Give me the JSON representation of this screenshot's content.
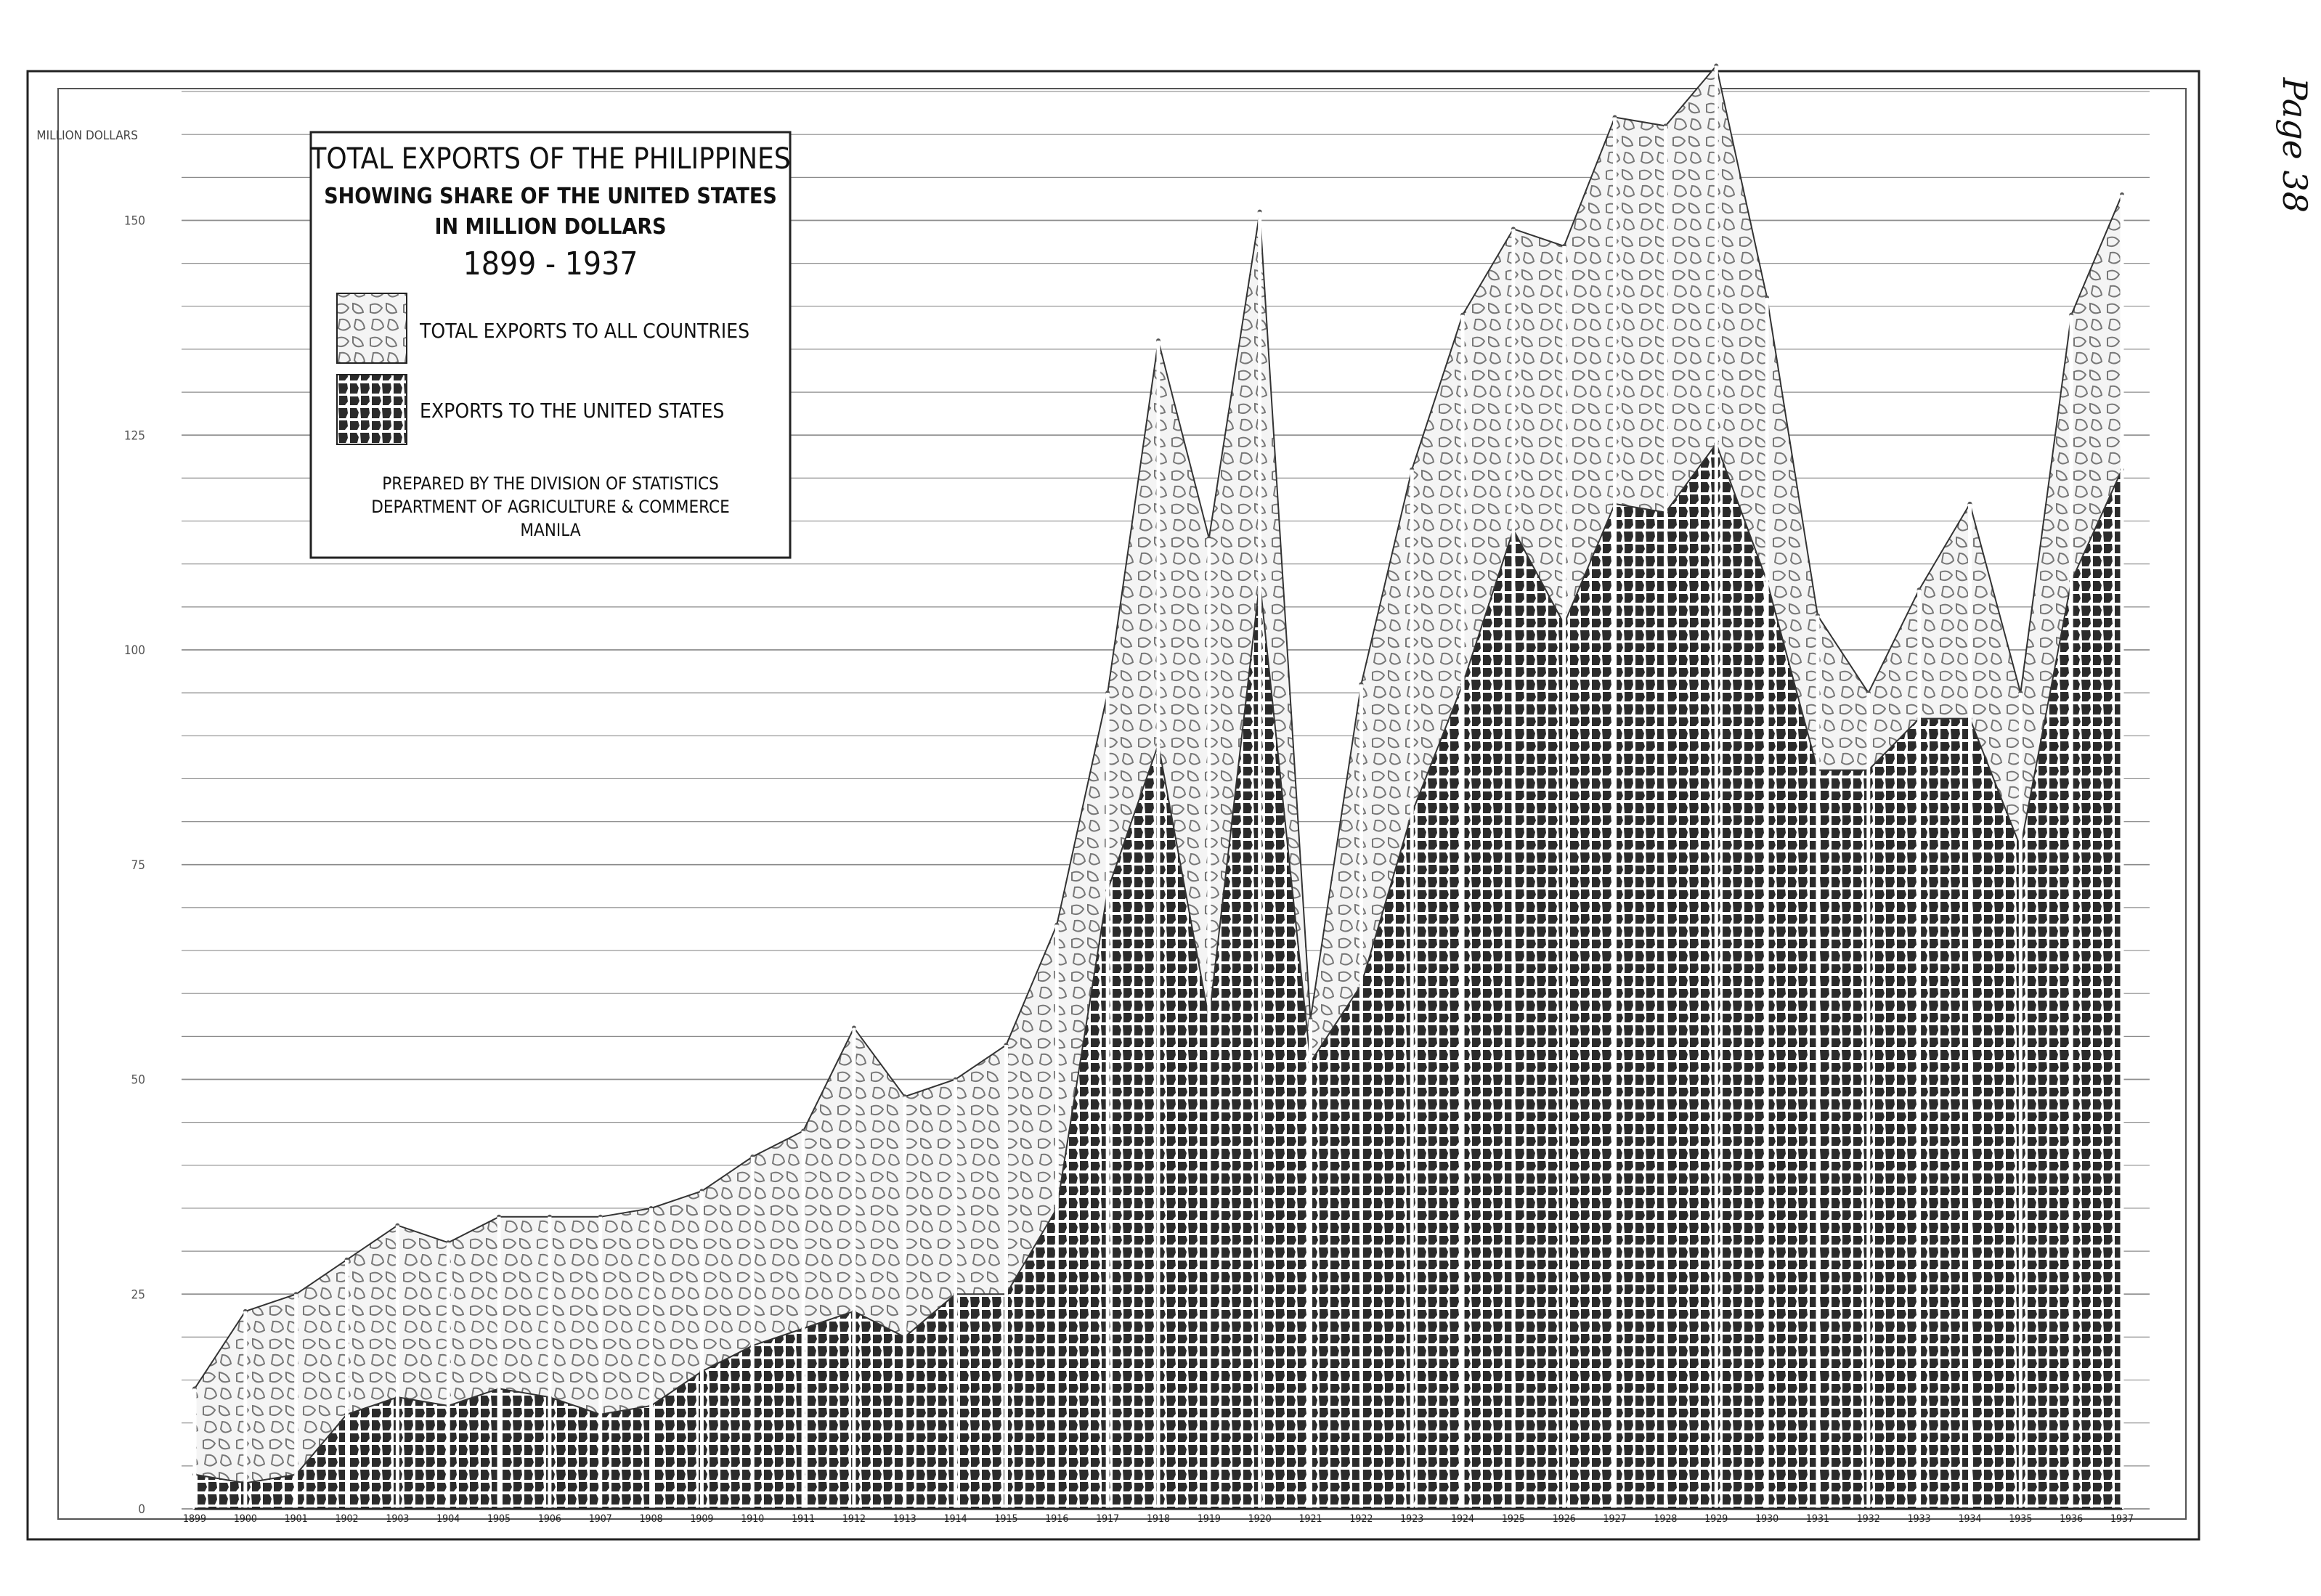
{
  "page_label": "Page 38",
  "chart_data": {
    "type": "area",
    "title": "TOTAL EXPORTS OF THE PHILIPPINES",
    "subtitle": "SHOWING SHARE OF THE UNITED STATES IN MILLION DOLLARS",
    "years_label": "1899 - 1937",
    "ylabel": "MILLION DOLLARS",
    "xlabel": "",
    "ylim": [
      0,
      165
    ],
    "y_ticks": [
      "0",
      "25",
      "50",
      "75",
      "100",
      "125",
      "150"
    ],
    "y_tick_values": [
      0,
      25,
      50,
      75,
      100,
      125,
      150
    ],
    "grid": true,
    "legend_position": "top-left",
    "credit": [
      "PREPARED BY THE DIVISION OF STATISTICS",
      "DEPARTMENT OF AGRICULTURE & COMMERCE",
      "MANILA"
    ],
    "categories": [
      "1899",
      "1900",
      "1901",
      "1902",
      "1903",
      "1904",
      "1905",
      "1906",
      "1907",
      "1908",
      "1909",
      "1910",
      "1911",
      "1912",
      "1913",
      "1914",
      "1915",
      "1916",
      "1917",
      "1918",
      "1919",
      "1920",
      "1921",
      "1922",
      "1923",
      "1924",
      "1925",
      "1926",
      "1927",
      "1928",
      "1929",
      "1930",
      "1931",
      "1932",
      "1933",
      "1934",
      "1935",
      "1936",
      "1937"
    ],
    "series": [
      {
        "name": "TOTAL EXPORTS TO ALL COUNTRIES",
        "color": "#f2f2f2",
        "values": [
          14,
          23,
          25,
          29,
          33,
          31,
          34,
          34,
          34,
          35,
          37,
          41,
          44,
          56,
          48,
          50,
          54,
          68,
          95,
          136,
          113,
          151,
          57,
          96,
          121,
          139,
          149,
          147,
          162,
          161,
          168,
          141,
          104,
          95,
          107,
          117,
          95,
          139,
          153
        ]
      },
      {
        "name": "EXPORTS TO THE UNITED STATES",
        "color": "#2a2a2a",
        "values": [
          4,
          3,
          4,
          11,
          13,
          12,
          14,
          13,
          11,
          12,
          16,
          19,
          21,
          23,
          20,
          25,
          25,
          35,
          72,
          89,
          57,
          108,
          52,
          61,
          81,
          96,
          114,
          103,
          117,
          116,
          124,
          108,
          86,
          86,
          92,
          92,
          77,
          108,
          121
        ]
      }
    ]
  }
}
